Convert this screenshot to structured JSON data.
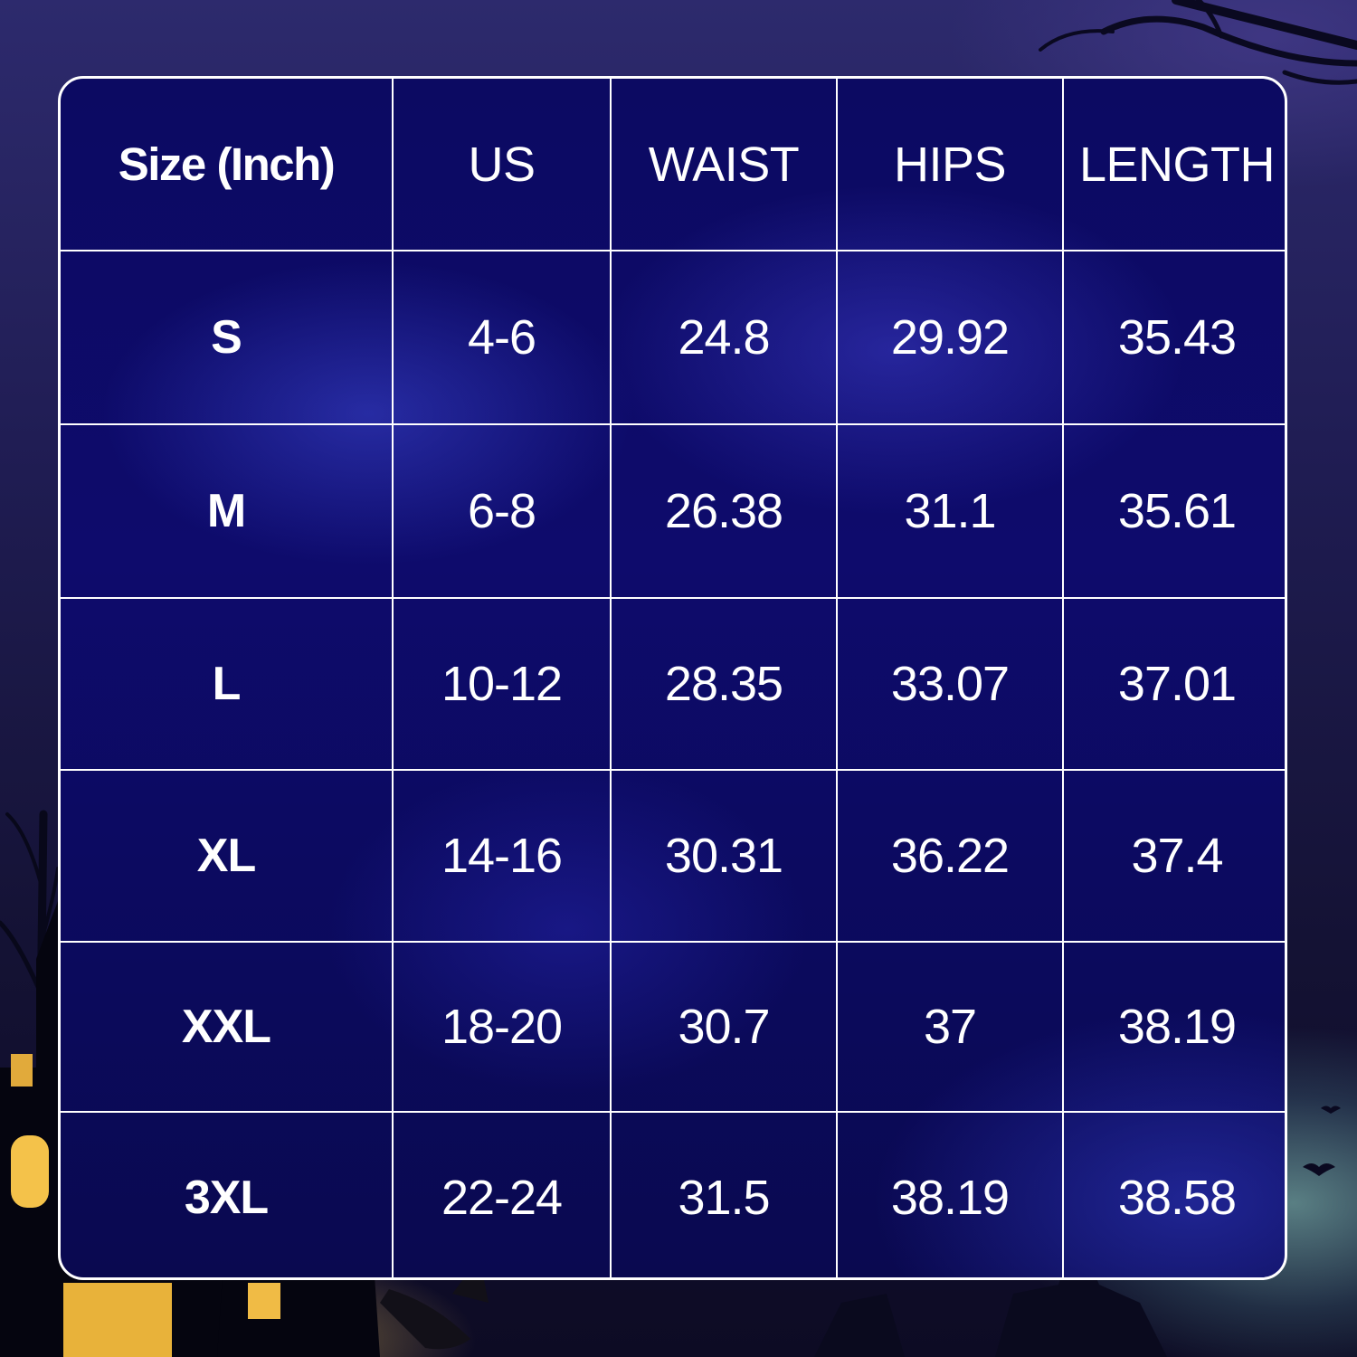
{
  "colors": {
    "panel": "#0c0a62",
    "grid_lines": "#ffffff",
    "text": "#ffffff"
  },
  "table": {
    "headers": [
      "Size (Inch)",
      "US",
      "WAIST",
      "HIPS",
      "LENGTH"
    ],
    "rows": [
      [
        "S",
        "4-6",
        "24.8",
        "29.92",
        "35.43"
      ],
      [
        "M",
        "6-8",
        "26.38",
        "31.1",
        "35.61"
      ],
      [
        "L",
        "10-12",
        "28.35",
        "33.07",
        "37.01"
      ],
      [
        "XL",
        "14-16",
        "30.31",
        "36.22",
        "37.4"
      ],
      [
        "XXL",
        "18-20",
        "30.7",
        "37",
        "38.19"
      ],
      [
        "3XL",
        "22-24",
        "31.5",
        "38.19",
        "38.58"
      ]
    ]
  }
}
